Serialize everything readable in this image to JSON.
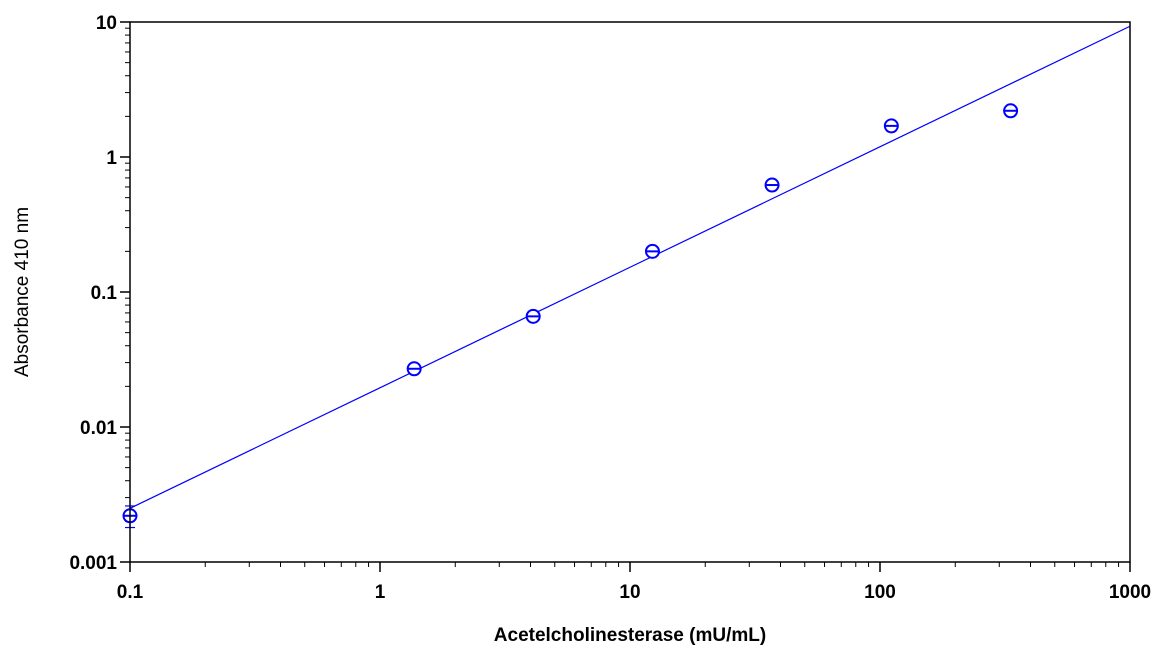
{
  "chart_data": {
    "type": "scatter",
    "title": "",
    "xlabel": "Acetelcholinesterase (mU/mL)",
    "ylabel": "Absorbance 410 nm",
    "x_scale": "log",
    "y_scale": "log",
    "xlim": [
      0.1,
      1000
    ],
    "ylim": [
      0.001,
      10
    ],
    "x_ticks": [
      {
        "value": 0.1,
        "label": "0.1"
      },
      {
        "value": 1,
        "label": "1"
      },
      {
        "value": 10,
        "label": "10"
      },
      {
        "value": 100,
        "label": "100"
      },
      {
        "value": 1000,
        "label": "1000"
      }
    ],
    "y_ticks": [
      {
        "value": 0.001,
        "label": "0.001"
      },
      {
        "value": 0.01,
        "label": "0.01"
      },
      {
        "value": 0.1,
        "label": "0.1"
      },
      {
        "value": 1,
        "label": "1"
      },
      {
        "value": 10,
        "label": "10"
      }
    ],
    "grid": false,
    "legend": false,
    "colors": {
      "series": "#0000ff",
      "axes": "#000000",
      "background": "#ffffff"
    },
    "series": [
      {
        "marker": "circle-open",
        "points": [
          {
            "x": 0.1,
            "y": 0.0022,
            "y_err": 0.0004
          },
          {
            "x": 1.37,
            "y": 0.027,
            "y_err": 0.001
          },
          {
            "x": 4.1,
            "y": 0.066,
            "y_err": 0.002
          },
          {
            "x": 12.3,
            "y": 0.2,
            "y_err": 0.006
          },
          {
            "x": 37,
            "y": 0.62,
            "y_err": 0.02
          },
          {
            "x": 111,
            "y": 1.7,
            "y_err": 0.05
          },
          {
            "x": 333,
            "y": 2.2,
            "y_err": 0.06
          }
        ]
      }
    ],
    "fit_line": {
      "type": "power",
      "points": [
        {
          "x": 0.1,
          "y": 0.0025
        },
        {
          "x": 1000,
          "y": 9.3
        }
      ]
    }
  }
}
